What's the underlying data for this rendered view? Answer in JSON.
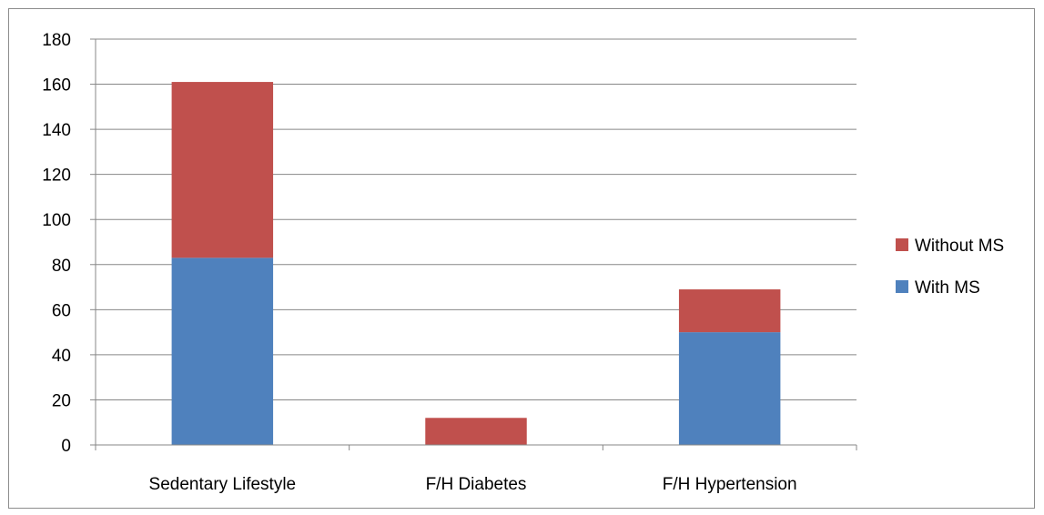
{
  "chart_data": {
    "type": "bar",
    "stacked": true,
    "title": "",
    "xlabel": "",
    "ylabel": "",
    "categories": [
      "Sedentary Lifestyle",
      "F/H Diabetes",
      "F/H Hypertension"
    ],
    "series": [
      {
        "name": "With MS",
        "values": [
          83,
          0,
          50
        ],
        "color": "#4f81bd"
      },
      {
        "name": "Without MS",
        "values": [
          78,
          12,
          19
        ],
        "color": "#c0504d"
      }
    ],
    "ylim": [
      0,
      180
    ],
    "yticks": [
      0,
      20,
      40,
      60,
      80,
      100,
      120,
      140,
      160,
      180
    ],
    "grid": true,
    "legend": {
      "placement": "right",
      "entries": [
        "Without MS",
        "With MS"
      ]
    }
  }
}
